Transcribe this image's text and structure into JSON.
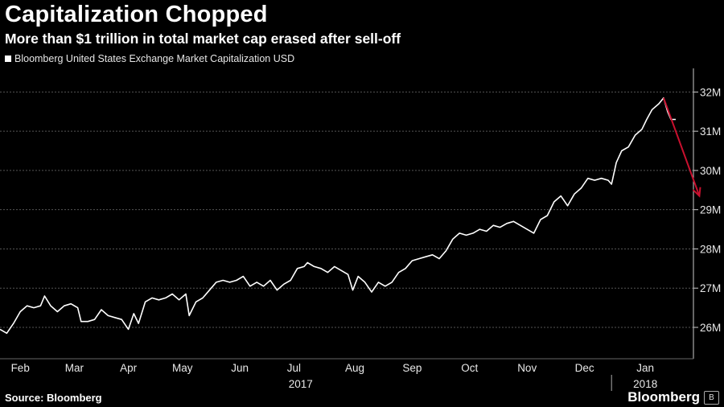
{
  "header": {
    "title": "Capitalization Chopped",
    "subtitle": "More than $1 trillion in total market cap erased after sell-off"
  },
  "footer": {
    "source": "Source: Bloomberg",
    "brand": "Bloomberg",
    "brand_icon": "bloomberg-b-icon"
  },
  "colors": {
    "background": "#000000",
    "line": "#ffffff",
    "arrow": "#c8102e",
    "grid": "#555555"
  },
  "chart_data": {
    "type": "line",
    "legend": {
      "placement": "top-left",
      "entries": [
        "Bloomberg United States Exchange Market Capitalization USD"
      ]
    },
    "ylabel": "",
    "xlabel": "",
    "y_axis_position": "right",
    "ylim": [
      25.2,
      32.5
    ],
    "y_ticks": [
      {
        "value": 26,
        "label": "26M"
      },
      {
        "value": 27,
        "label": "27M"
      },
      {
        "value": 28,
        "label": "28M"
      },
      {
        "value": 29,
        "label": "29M"
      },
      {
        "value": 30,
        "label": "30M"
      },
      {
        "value": 31,
        "label": "31M"
      },
      {
        "value": 32,
        "label": "32M"
      }
    ],
    "grid": true,
    "x_ticks": [
      {
        "t": 0.03,
        "label": "Feb"
      },
      {
        "t": 0.11,
        "label": "Mar"
      },
      {
        "t": 0.19,
        "label": "Apr"
      },
      {
        "t": 0.27,
        "label": "May"
      },
      {
        "t": 0.355,
        "label": "Jun"
      },
      {
        "t": 0.435,
        "label": "Jul"
      },
      {
        "t": 0.525,
        "label": "Aug"
      },
      {
        "t": 0.61,
        "label": "Sep"
      },
      {
        "t": 0.695,
        "label": "Oct"
      },
      {
        "t": 0.78,
        "label": "Nov"
      },
      {
        "t": 0.865,
        "label": "Dec"
      },
      {
        "t": 0.955,
        "label": "Jan"
      }
    ],
    "year_labels": [
      {
        "t": 0.445,
        "label": "2017"
      },
      {
        "t": 0.955,
        "label": "2018"
      }
    ],
    "year_divider_t": 0.905,
    "series": [
      {
        "name": "Bloomberg United States Exchange Market Capitalization USD",
        "points": [
          [
            0.0,
            25.95
          ],
          [
            0.01,
            25.85
          ],
          [
            0.02,
            26.1
          ],
          [
            0.03,
            26.4
          ],
          [
            0.04,
            26.55
          ],
          [
            0.05,
            26.5
          ],
          [
            0.06,
            26.55
          ],
          [
            0.066,
            26.8
          ],
          [
            0.075,
            26.55
          ],
          [
            0.085,
            26.4
          ],
          [
            0.095,
            26.55
          ],
          [
            0.105,
            26.6
          ],
          [
            0.115,
            26.5
          ],
          [
            0.12,
            26.15
          ],
          [
            0.13,
            26.15
          ],
          [
            0.14,
            26.2
          ],
          [
            0.15,
            26.45
          ],
          [
            0.16,
            26.3
          ],
          [
            0.17,
            26.25
          ],
          [
            0.18,
            26.2
          ],
          [
            0.19,
            25.95
          ],
          [
            0.198,
            26.35
          ],
          [
            0.205,
            26.1
          ],
          [
            0.215,
            26.65
          ],
          [
            0.225,
            26.75
          ],
          [
            0.235,
            26.7
          ],
          [
            0.245,
            26.75
          ],
          [
            0.255,
            26.85
          ],
          [
            0.265,
            26.7
          ],
          [
            0.275,
            26.85
          ],
          [
            0.28,
            26.3
          ],
          [
            0.29,
            26.65
          ],
          [
            0.3,
            26.75
          ],
          [
            0.31,
            26.95
          ],
          [
            0.32,
            27.15
          ],
          [
            0.33,
            27.2
          ],
          [
            0.34,
            27.15
          ],
          [
            0.35,
            27.2
          ],
          [
            0.36,
            27.3
          ],
          [
            0.37,
            27.05
          ],
          [
            0.38,
            27.15
          ],
          [
            0.39,
            27.05
          ],
          [
            0.4,
            27.2
          ],
          [
            0.41,
            26.95
          ],
          [
            0.42,
            27.1
          ],
          [
            0.43,
            27.2
          ],
          [
            0.44,
            27.5
          ],
          [
            0.45,
            27.55
          ],
          [
            0.455,
            27.65
          ],
          [
            0.465,
            27.55
          ],
          [
            0.475,
            27.5
          ],
          [
            0.485,
            27.4
          ],
          [
            0.495,
            27.55
          ],
          [
            0.505,
            27.45
          ],
          [
            0.515,
            27.35
          ],
          [
            0.522,
            26.95
          ],
          [
            0.53,
            27.3
          ],
          [
            0.54,
            27.15
          ],
          [
            0.55,
            26.9
          ],
          [
            0.56,
            27.15
          ],
          [
            0.57,
            27.05
          ],
          [
            0.58,
            27.15
          ],
          [
            0.59,
            27.4
          ],
          [
            0.6,
            27.5
          ],
          [
            0.61,
            27.7
          ],
          [
            0.62,
            27.75
          ],
          [
            0.63,
            27.8
          ],
          [
            0.64,
            27.85
          ],
          [
            0.65,
            27.75
          ],
          [
            0.66,
            27.95
          ],
          [
            0.67,
            28.25
          ],
          [
            0.68,
            28.4
          ],
          [
            0.69,
            28.35
          ],
          [
            0.7,
            28.4
          ],
          [
            0.71,
            28.5
          ],
          [
            0.72,
            28.45
          ],
          [
            0.73,
            28.6
          ],
          [
            0.74,
            28.55
          ],
          [
            0.75,
            28.65
          ],
          [
            0.76,
            28.7
          ],
          [
            0.77,
            28.6
          ],
          [
            0.78,
            28.5
          ],
          [
            0.79,
            28.4
          ],
          [
            0.8,
            28.75
          ],
          [
            0.81,
            28.85
          ],
          [
            0.82,
            29.2
          ],
          [
            0.83,
            29.35
          ],
          [
            0.84,
            29.1
          ],
          [
            0.85,
            29.4
          ],
          [
            0.86,
            29.55
          ],
          [
            0.87,
            29.8
          ],
          [
            0.88,
            29.75
          ],
          [
            0.89,
            29.8
          ],
          [
            0.9,
            29.75
          ],
          [
            0.905,
            29.65
          ],
          [
            0.912,
            30.2
          ],
          [
            0.92,
            30.5
          ],
          [
            0.93,
            30.6
          ],
          [
            0.94,
            30.9
          ],
          [
            0.95,
            31.05
          ],
          [
            0.957,
            31.3
          ],
          [
            0.965,
            31.55
          ],
          [
            0.975,
            31.7
          ],
          [
            0.982,
            31.85
          ],
          [
            0.988,
            31.5
          ],
          [
            0.993,
            31.3
          ],
          [
            1.0,
            31.3
          ]
        ]
      }
    ],
    "annotations": [
      {
        "type": "arrow",
        "from": [
          0.982,
          31.85
        ],
        "to": [
          1.035,
          29.35
        ]
      }
    ]
  }
}
